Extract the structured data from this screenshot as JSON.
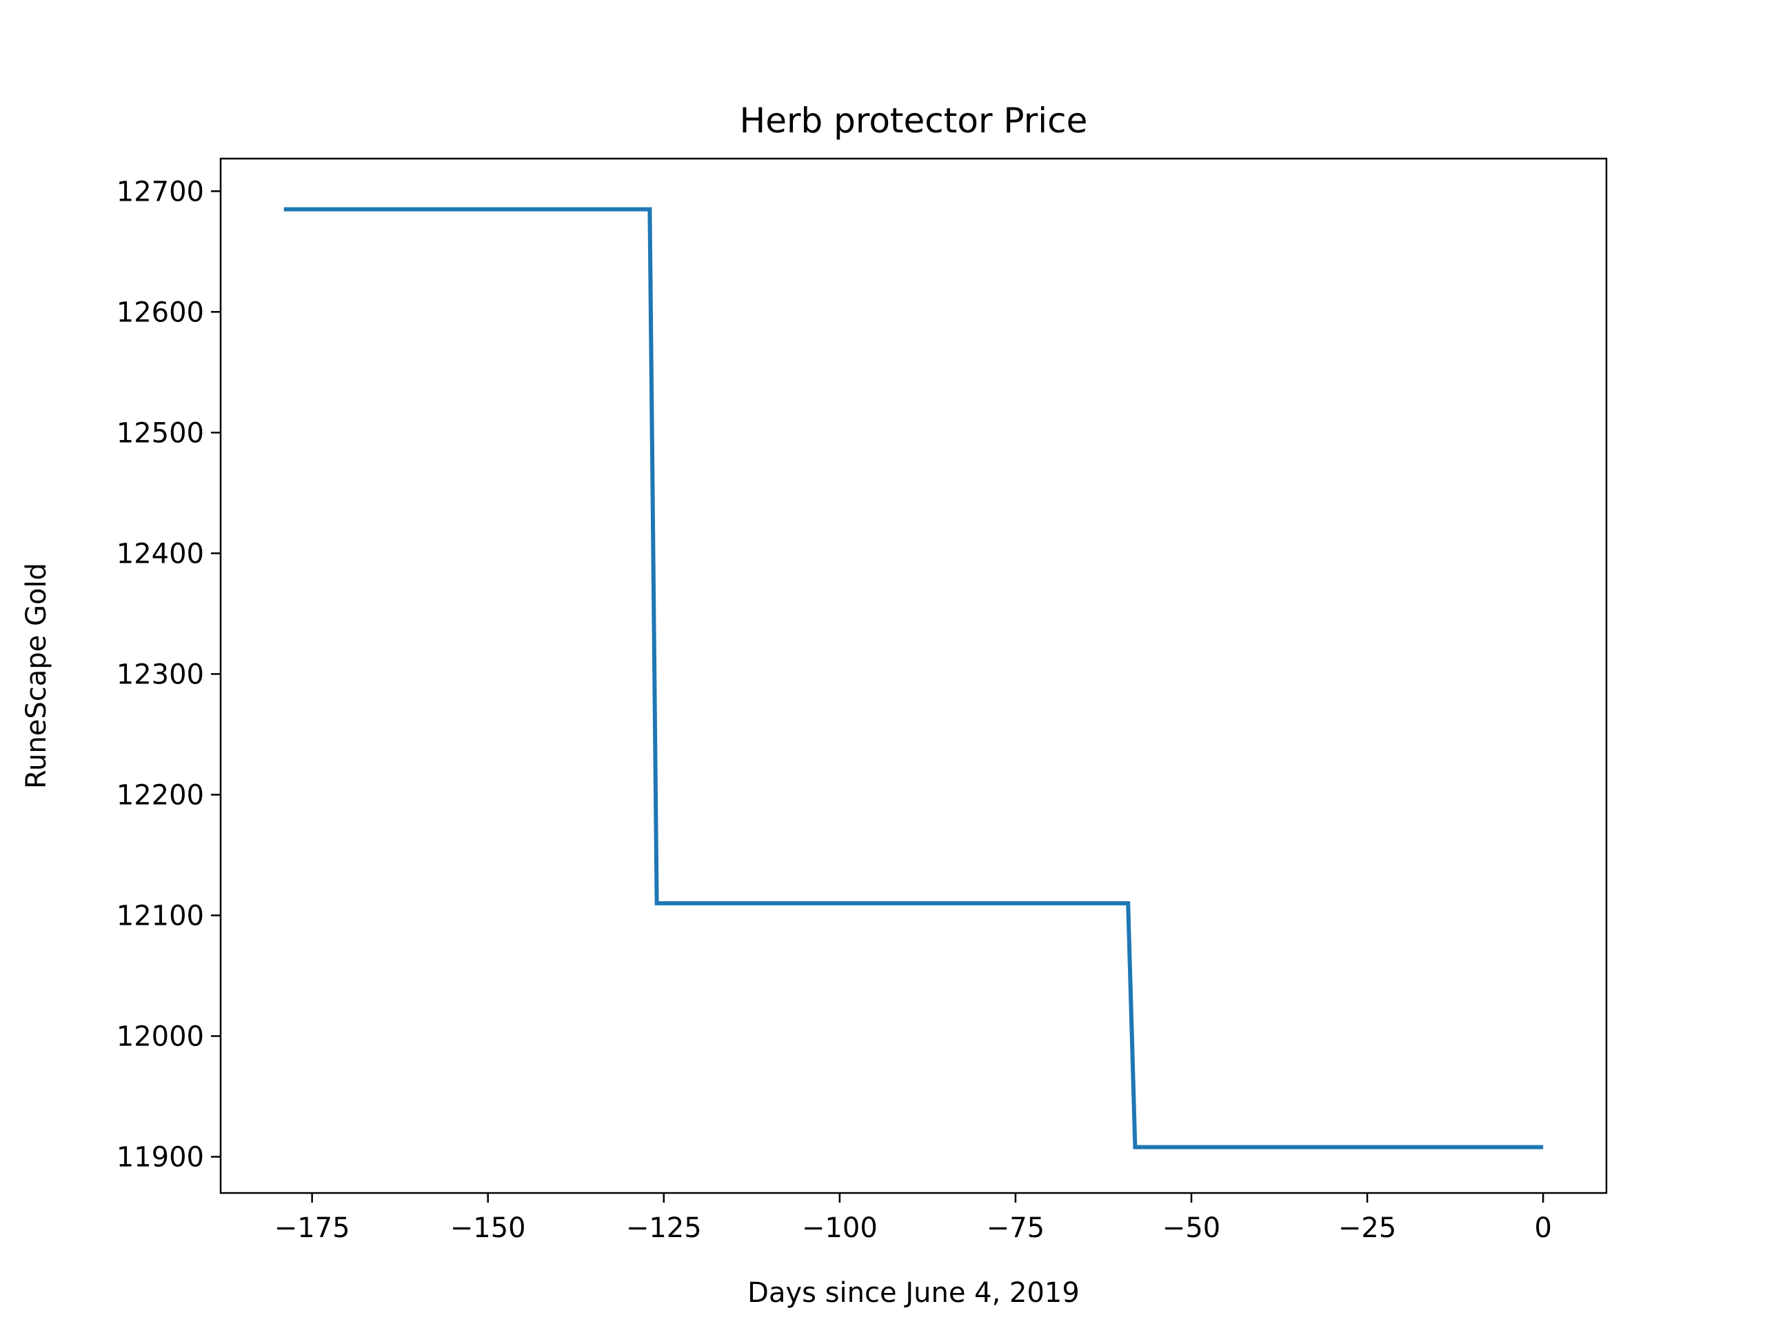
{
  "chart_data": {
    "type": "line",
    "title": "Herb protector Price",
    "xlabel": "Days since June 4, 2019",
    "ylabel": "RuneScape Gold",
    "xlim": [
      -188,
      9
    ],
    "ylim": [
      11870,
      12727
    ],
    "xticks": [
      -175,
      -150,
      -125,
      -100,
      -75,
      -50,
      -25,
      0
    ],
    "xtick_labels": [
      "−175",
      "−150",
      "−125",
      "−100",
      "−75",
      "−50",
      "−25",
      "0"
    ],
    "yticks": [
      11900,
      12000,
      12100,
      12200,
      12300,
      12400,
      12500,
      12600,
      12700
    ],
    "ytick_labels": [
      "11900",
      "12000",
      "12100",
      "12200",
      "12300",
      "12400",
      "12500",
      "12600",
      "12700"
    ],
    "grid": false,
    "series": [
      {
        "color": "#1f77b4",
        "x": [
          -179,
          -127,
          -126,
          -59,
          -58,
          0
        ],
        "y": [
          12685,
          12685,
          12110,
          12110,
          11908,
          11908
        ]
      }
    ]
  }
}
